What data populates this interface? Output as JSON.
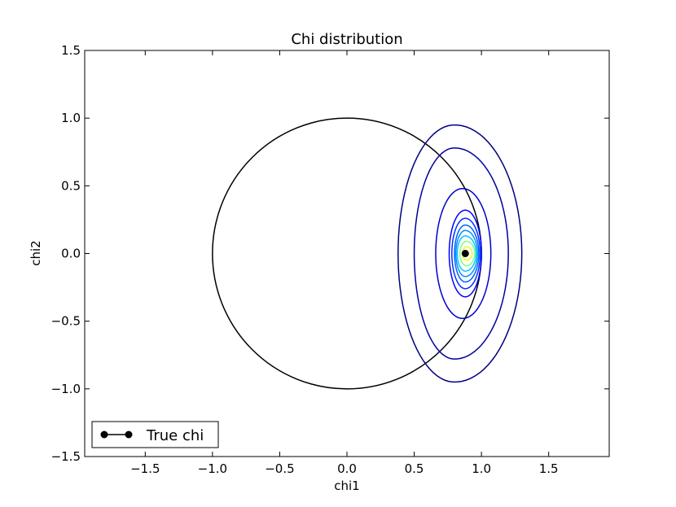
{
  "chart_data": {
    "type": "line",
    "title": "Chi distribution",
    "xlabel": "chi1",
    "ylabel": "chi2",
    "xlim": [
      -1.95,
      1.95
    ],
    "ylim": [
      -1.5,
      1.5
    ],
    "x_ticks": [
      -1.5,
      -1.0,
      -0.5,
      0.0,
      0.5,
      1.0,
      1.5
    ],
    "x_tick_labels": [
      "−1.5",
      "−1.0",
      "−0.5",
      "0.0",
      "0.5",
      "1.0",
      "1.5"
    ],
    "y_ticks": [
      -1.5,
      -1.0,
      -0.5,
      0.0,
      0.5,
      1.0,
      1.5
    ],
    "y_tick_labels": [
      "−1.5",
      "−1.0",
      "−0.5",
      "0.0",
      "0.5",
      "1.0",
      "1.5"
    ],
    "grid": false,
    "legend": {
      "location": "lower left",
      "entries": [
        "True chi"
      ]
    },
    "series": [
      {
        "name": "True chi",
        "kind": "point",
        "x": 0.88,
        "y": 0.0,
        "color": "#000000"
      }
    ],
    "unit_circle": {
      "center": [
        0.0,
        0.0
      ],
      "radius": 1.0,
      "color": "#000000"
    },
    "contours": [
      {
        "center": [
          0.8,
          0.0
        ],
        "top": 0.95,
        "bottom": -0.95,
        "left": 0.38,
        "right": 1.3,
        "color": "#000080"
      },
      {
        "center": [
          0.8,
          0.0
        ],
        "top": 0.78,
        "bottom": -0.78,
        "left": 0.5,
        "right": 1.2,
        "color": "#00009f"
      },
      {
        "center": [
          0.86,
          0.0
        ],
        "top": 0.48,
        "bottom": -0.48,
        "left": 0.66,
        "right": 1.07,
        "color": "#0000cd"
      },
      {
        "center": [
          0.88,
          0.0
        ],
        "top": 0.32,
        "bottom": -0.32,
        "left": 0.76,
        "right": 1.0,
        "color": "#0000ff"
      },
      {
        "center": [
          0.88,
          0.0
        ],
        "top": 0.26,
        "bottom": -0.26,
        "left": 0.78,
        "right": 0.99,
        "color": "#0030ff"
      },
      {
        "center": [
          0.88,
          0.0
        ],
        "top": 0.21,
        "bottom": -0.21,
        "left": 0.8,
        "right": 0.98,
        "color": "#0060ff"
      },
      {
        "center": [
          0.88,
          0.0
        ],
        "top": 0.17,
        "bottom": -0.17,
        "left": 0.81,
        "right": 0.97,
        "color": "#0090ff"
      },
      {
        "center": [
          0.88,
          0.0
        ],
        "top": 0.13,
        "bottom": -0.13,
        "left": 0.82,
        "right": 0.96,
        "color": "#00c8ff"
      },
      {
        "center": [
          0.89,
          0.0
        ],
        "top": 0.09,
        "bottom": -0.09,
        "left": 0.84,
        "right": 0.95,
        "color": "#80ff80"
      },
      {
        "center": [
          0.89,
          0.0
        ],
        "top": 0.05,
        "bottom": -0.05,
        "left": 0.86,
        "right": 0.93,
        "color": "#e0ff20"
      }
    ]
  }
}
